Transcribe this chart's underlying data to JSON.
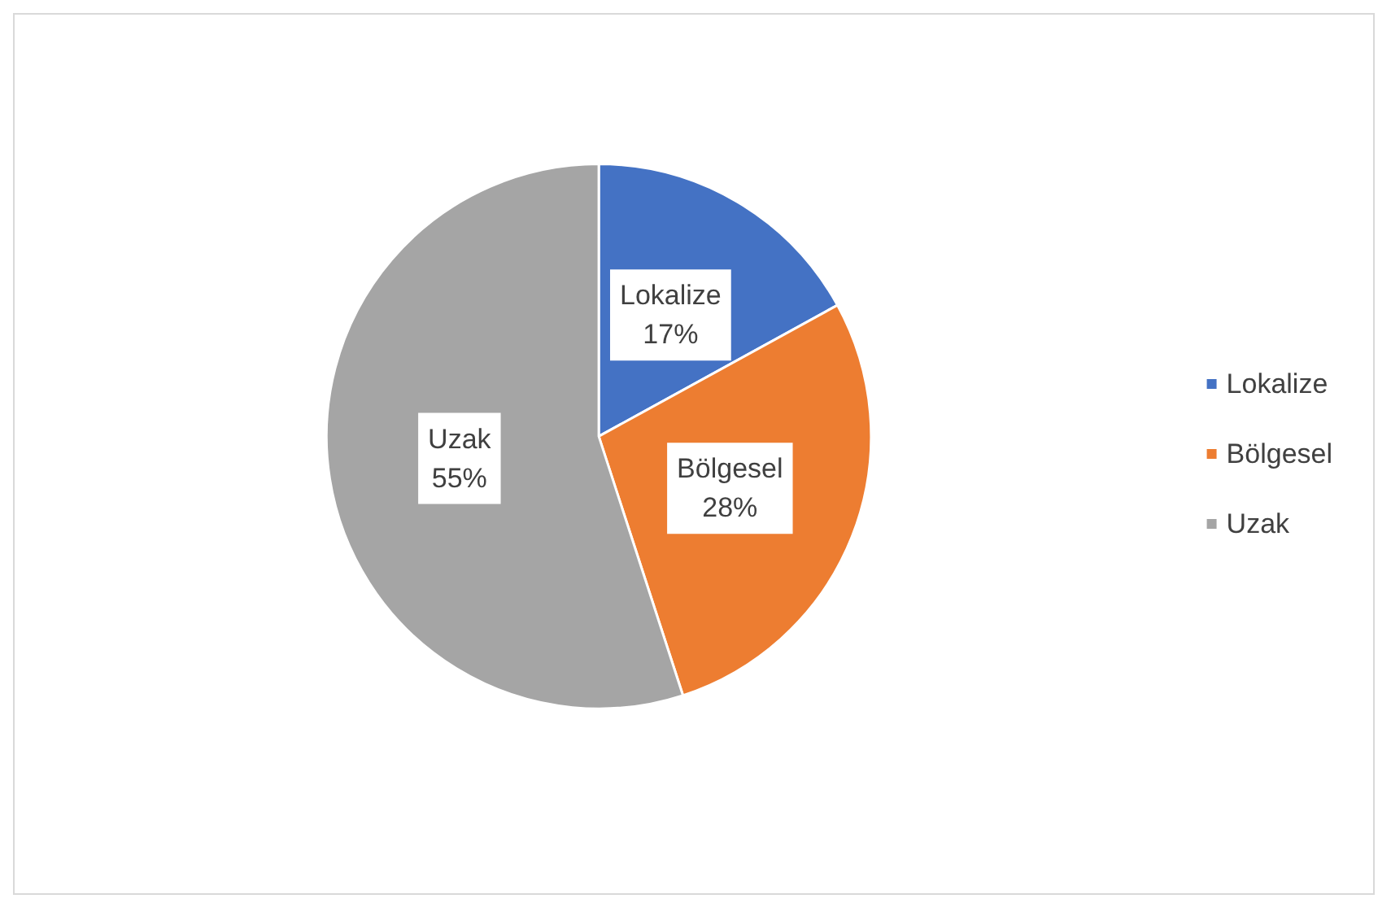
{
  "chart_data": {
    "type": "pie",
    "categories": [
      "Lokalize",
      "Bölgesel",
      "Uzak"
    ],
    "values": [
      17,
      28,
      55
    ],
    "colors": [
      "#4472c4",
      "#ed7d31",
      "#a5a5a5"
    ],
    "value_labels": [
      "17%",
      "28%",
      "55%"
    ],
    "legend": "right"
  }
}
